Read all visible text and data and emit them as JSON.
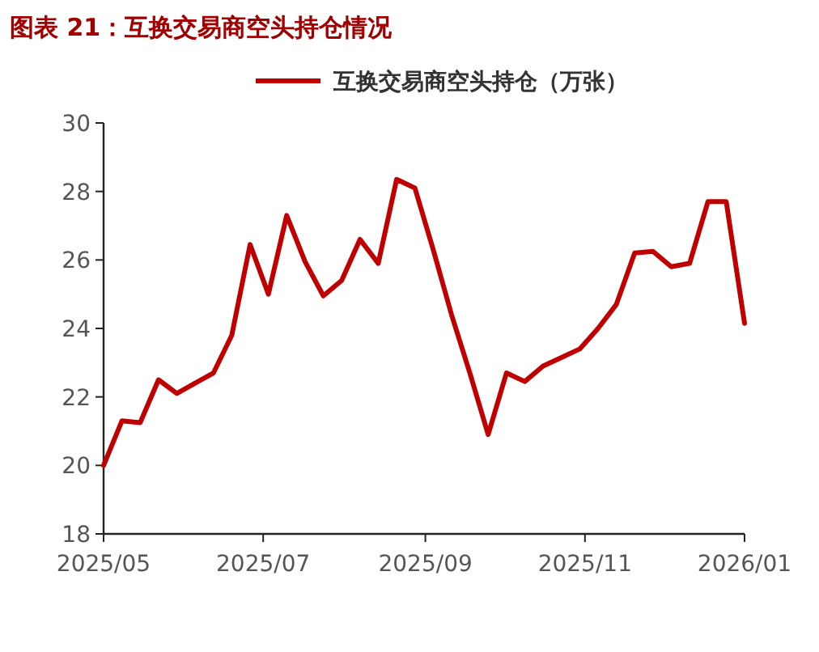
{
  "chart_data": {
    "type": "line",
    "title": "图表 21：互换交易商空头持仓情况",
    "x": [
      "2025-05-01",
      "2025-05-08",
      "2025-05-15",
      "2025-05-22",
      "2025-05-29",
      "2025-06-05",
      "2025-06-12",
      "2025-06-19",
      "2025-06-26",
      "2025-07-03",
      "2025-07-10",
      "2025-07-17",
      "2025-07-24",
      "2025-07-31",
      "2025-08-07",
      "2025-08-14",
      "2025-08-21",
      "2025-08-28",
      "2025-09-04",
      "2025-09-11",
      "2025-09-18",
      "2025-09-25",
      "2025-10-02",
      "2025-10-09",
      "2025-10-16",
      "2025-10-23",
      "2025-10-30",
      "2025-11-06",
      "2025-11-13",
      "2025-11-20",
      "2025-11-27",
      "2025-12-04",
      "2025-12-11",
      "2025-12-18",
      "2025-12-25",
      "2026-01-01"
    ],
    "series": [
      {
        "name": "互换交易商空头持仓（万张）",
        "color": "#c00000",
        "values": [
          20.0,
          21.3,
          21.25,
          22.5,
          22.1,
          22.4,
          22.7,
          23.8,
          26.45,
          25.0,
          27.3,
          25.95,
          24.95,
          25.4,
          26.6,
          25.9,
          28.35,
          28.1,
          26.3,
          24.4,
          22.7,
          20.9,
          22.7,
          22.45,
          22.9,
          23.15,
          23.4,
          24.0,
          24.7,
          26.2,
          26.25,
          25.8,
          25.9,
          27.7,
          27.7,
          24.15
        ]
      }
    ],
    "xlim": [
      "2025-05-01",
      "2026-01-01"
    ],
    "xticks": [
      {
        "value": "2025-05-01",
        "label": "2025/05"
      },
      {
        "value": "2025-07-01",
        "label": "2025/07"
      },
      {
        "value": "2025-09-01",
        "label": "2025/09"
      },
      {
        "value": "2025-11-01",
        "label": "2025/11"
      },
      {
        "value": "2026-01-01",
        "label": "2026/01"
      }
    ],
    "ylim": [
      18,
      30
    ],
    "yticks": [
      18,
      20,
      22,
      24,
      26,
      28,
      30
    ],
    "legend": "top",
    "grid": false,
    "marker": "none",
    "line_style": "solid"
  }
}
